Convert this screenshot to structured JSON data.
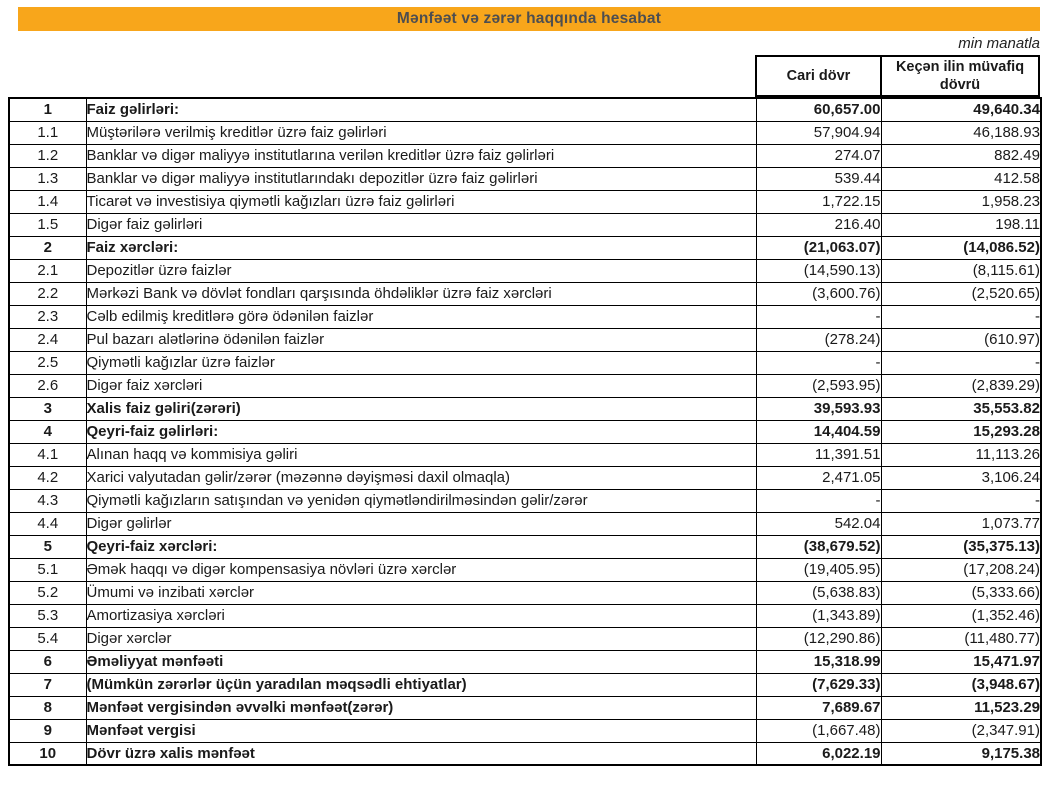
{
  "title": "Mənfəət və zərər haqqında hesabat",
  "unit_note": "min manatla",
  "columns": {
    "current": "Cari dövr",
    "previous": "Keçən ilin müvafiq dövrü"
  },
  "colors": {
    "title_bar_bg": "#F8A61B",
    "title_text": "#4D4E50",
    "border": "#000000"
  },
  "rows": [
    {
      "num": "1",
      "label": "Faiz gəlirləri:",
      "current": "60,657.00",
      "previous": "49,640.34",
      "bold": true,
      "bold_values": true
    },
    {
      "num": "1.1",
      "label": "Müştərilərə verilmiş kreditlər üzrə faiz gəlirləri",
      "current": "57,904.94",
      "previous": "46,188.93",
      "bold": false,
      "bold_values": false
    },
    {
      "num": "1.2",
      "label": "Banklar və digər maliyyə institutlarına verilən kreditlər üzrə faiz gəlirləri",
      "current": "274.07",
      "previous": "882.49",
      "bold": false,
      "bold_values": false
    },
    {
      "num": "1.3",
      "label": "Banklar və digər maliyyə institutlarındakı depozitlər üzrə faiz gəlirləri",
      "current": "539.44",
      "previous": "412.58",
      "bold": false,
      "bold_values": false
    },
    {
      "num": "1.4",
      "label": "Ticarət və investisiya qiymətli kağızları üzrə faiz gəlirləri",
      "current": "1,722.15",
      "previous": "1,958.23",
      "bold": false,
      "bold_values": false
    },
    {
      "num": "1.5",
      "label": "Digər faiz gəlirləri",
      "current": "216.40",
      "previous": "198.11",
      "bold": false,
      "bold_values": false
    },
    {
      "num": "2",
      "label": "Faiz xərcləri:",
      "current": "(21,063.07)",
      "previous": "(14,086.52)",
      "bold": true,
      "bold_values": true
    },
    {
      "num": "2.1",
      "label": "Depozitlər üzrə faizlər",
      "current": "(14,590.13)",
      "previous": "(8,115.61)",
      "bold": false,
      "bold_values": false
    },
    {
      "num": "2.2",
      "label": "Mərkəzi Bank və dövlət fondları qarşısında öhdəliklər üzrə faiz xərcləri",
      "current": "(3,600.76)",
      "previous": "(2,520.65)",
      "bold": false,
      "bold_values": false
    },
    {
      "num": "2.3",
      "label": "Cəlb edilmiş kreditlərə görə ödənilən faizlər",
      "current": "-",
      "previous": "-",
      "bold": false,
      "bold_values": false
    },
    {
      "num": "2.4",
      "label": "Pul bazarı alətlərinə ödənilən faizlər",
      "current": "(278.24)",
      "previous": "(610.97)",
      "bold": false,
      "bold_values": false
    },
    {
      "num": "2.5",
      "label": "Qiymətli kağızlar üzrə faizlər",
      "current": "-",
      "previous": "-",
      "bold": false,
      "bold_values": false
    },
    {
      "num": "2.6",
      "label": "Digər faiz xərcləri",
      "current": "(2,593.95)",
      "previous": "(2,839.29)",
      "bold": false,
      "bold_values": false
    },
    {
      "num": "3",
      "label": "Xalis faiz gəliri(zərəri)",
      "current": "39,593.93",
      "previous": "35,553.82",
      "bold": true,
      "bold_values": true
    },
    {
      "num": "4",
      "label": "Qeyri-faiz gəlirləri:",
      "current": "14,404.59",
      "previous": "15,293.28",
      "bold": true,
      "bold_values": true
    },
    {
      "num": "4.1",
      "label": "Alınan haqq və kommisiya gəliri",
      "current": "11,391.51",
      "previous": "11,113.26",
      "bold": false,
      "bold_values": false
    },
    {
      "num": "4.2",
      "label": "Xarici valyutadan gəlir/zərər (məzənnə dəyişməsi daxil olmaqla)",
      "current": "2,471.05",
      "previous": "3,106.24",
      "bold": false,
      "bold_values": false
    },
    {
      "num": "4.3",
      "label": "Qiymətli kağızların satışından və yenidən qiymətləndirilməsindən gəlir/zərər",
      "current": "-",
      "previous": "-",
      "bold": false,
      "bold_values": false
    },
    {
      "num": "4.4",
      "label": "Digər gəlirlər",
      "current": "542.04",
      "previous": "1,073.77",
      "bold": false,
      "bold_values": false
    },
    {
      "num": "5",
      "label": "Qeyri-faiz xərcləri:",
      "current": "(38,679.52)",
      "previous": "(35,375.13)",
      "bold": true,
      "bold_values": true
    },
    {
      "num": "5.1",
      "label": "Əmək haqqı və digər kompensasiya növləri üzrə xərclər",
      "current": "(19,405.95)",
      "previous": "(17,208.24)",
      "bold": false,
      "bold_values": false
    },
    {
      "num": "5.2",
      "label": "Ümumi və inzibati xərclər",
      "current": "(5,638.83)",
      "previous": "(5,333.66)",
      "bold": false,
      "bold_values": false
    },
    {
      "num": "5.3",
      "label": "Amortizasiya xərcləri",
      "current": "(1,343.89)",
      "previous": "(1,352.46)",
      "bold": false,
      "bold_values": false
    },
    {
      "num": "5.4",
      "label": "Digər xərclər",
      "current": "(12,290.86)",
      "previous": "(11,480.77)",
      "bold": false,
      "bold_values": false
    },
    {
      "num": "6",
      "label": "Əməliyyat mənfəəti",
      "current": "15,318.99",
      "previous": "15,471.97",
      "bold": true,
      "bold_values": true
    },
    {
      "num": "7",
      "label": "(Mümkün zərərlər üçün yaradılan məqsədli ehtiyatlar)",
      "current": "(7,629.33)",
      "previous": "(3,948.67)",
      "bold": true,
      "bold_values": true
    },
    {
      "num": "8",
      "label": "Mənfəət vergisindən əvvəlki mənfəət(zərər)",
      "current": "7,689.67",
      "previous": "11,523.29",
      "bold": true,
      "bold_values": true
    },
    {
      "num": "9",
      "label": "Mənfəət vergisi",
      "current": "(1,667.48)",
      "previous": "(2,347.91)",
      "bold": true,
      "bold_values": false
    },
    {
      "num": "10",
      "label": "Dövr üzrə xalis mənfəət",
      "current": "6,022.19",
      "previous": "9,175.38",
      "bold": true,
      "bold_values": true
    }
  ]
}
